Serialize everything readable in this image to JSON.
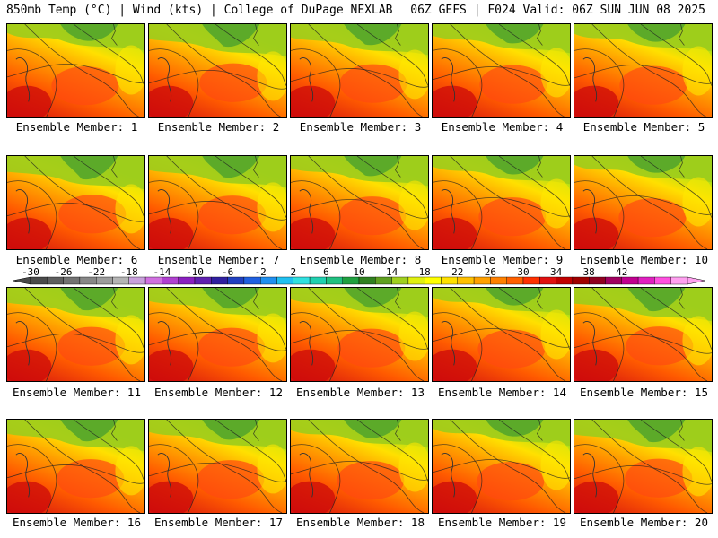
{
  "header": {
    "left": "850mb Temp (°C) | Wind (kts) | College of DuPage NEXLAB",
    "right": "06Z GEFS | F024 Valid: 06Z SUN JUN 08 2025"
  },
  "members": [
    {
      "label": "Ensemble Member: 1"
    },
    {
      "label": "Ensemble Member: 2"
    },
    {
      "label": "Ensemble Member: 3"
    },
    {
      "label": "Ensemble Member: 4"
    },
    {
      "label": "Ensemble Member: 5"
    },
    {
      "label": "Ensemble Member: 6"
    },
    {
      "label": "Ensemble Member: 7"
    },
    {
      "label": "Ensemble Member: 8"
    },
    {
      "label": "Ensemble Member: 9"
    },
    {
      "label": "Ensemble Member: 10"
    },
    {
      "label": "Ensemble Member: 11"
    },
    {
      "label": "Ensemble Member: 12"
    },
    {
      "label": "Ensemble Member: 13"
    },
    {
      "label": "Ensemble Member: 14"
    },
    {
      "label": "Ensemble Member: 15"
    },
    {
      "label": "Ensemble Member: 16"
    },
    {
      "label": "Ensemble Member: 17"
    },
    {
      "label": "Ensemble Member: 18"
    },
    {
      "label": "Ensemble Member: 19"
    },
    {
      "label": "Ensemble Member: 20"
    }
  ],
  "colorbar": {
    "ticks": [
      "-30",
      "-26",
      "-22",
      "-18",
      "-14",
      "-10",
      "-6",
      "-2",
      "2",
      "6",
      "10",
      "14",
      "18",
      "22",
      "26",
      "30",
      "34",
      "38",
      "42"
    ],
    "colors": [
      "#4a4a4a",
      "#5e5e5e",
      "#727272",
      "#878787",
      "#9c9c9c",
      "#b4b4b4",
      "#c9a0dc",
      "#d070e0",
      "#b040d0",
      "#8a20c0",
      "#6020b0",
      "#3020a0",
      "#2040c0",
      "#2060e0",
      "#2090f0",
      "#20c0f0",
      "#30e0e0",
      "#20d0b0",
      "#20c080",
      "#20a040",
      "#308020",
      "#60a020",
      "#a0d020",
      "#e0f010",
      "#ffff00",
      "#ffe000",
      "#ffc000",
      "#ffa000",
      "#ff8000",
      "#ff6000",
      "#ff3000",
      "#e01010",
      "#c00000",
      "#a00000",
      "#900020",
      "#a00060",
      "#c00090",
      "#e020c0",
      "#ff50e0",
      "#ffa0f0"
    ]
  }
}
